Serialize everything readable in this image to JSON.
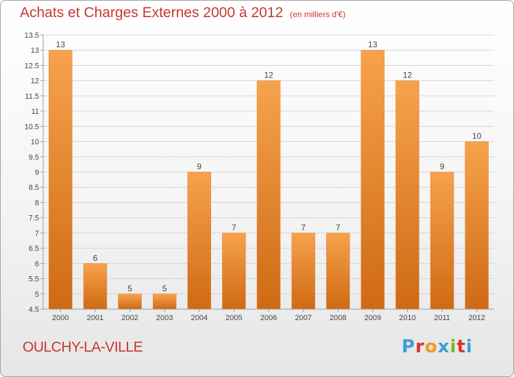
{
  "header": {
    "title": "Achats et Charges Externes 2000 à 2012",
    "unit": "(en milliers d'€)"
  },
  "footer": {
    "commune": "OULCHY-LA-VILLE",
    "logo_letters": [
      "P",
      "r",
      "o",
      "x",
      "i",
      "t",
      "i"
    ],
    "logo_colors": [
      "#3a9fd8",
      "#e0312b",
      "#f39a1e",
      "#3a9fd8",
      "#71b62e",
      "#e0312b",
      "#3a9fd8"
    ]
  },
  "colors": {
    "bar_light": "#f7a24c",
    "bar_dark": "#cf6a14",
    "grid": "#d4d4d4",
    "axis": "#999999"
  },
  "chart_data": {
    "type": "bar",
    "title": "Achats et Charges Externes 2000 à 2012",
    "xlabel": "",
    "ylabel": "",
    "categories": [
      "2000",
      "2001",
      "2002",
      "2003",
      "2004",
      "2005",
      "2006",
      "2007",
      "2008",
      "2009",
      "2010",
      "2011",
      "2012"
    ],
    "values": [
      13,
      6,
      5,
      5,
      9,
      7,
      12,
      7,
      7,
      13,
      12,
      9,
      10
    ],
    "data_labels": [
      "13",
      "6",
      "5",
      "5",
      "9",
      "7",
      "12",
      "7",
      "7",
      "13",
      "12",
      "9",
      "10"
    ],
    "ylim": [
      4.5,
      13.5
    ],
    "y_ticks": [
      4.5,
      5,
      5.5,
      6,
      6.5,
      7,
      7.5,
      8,
      8.5,
      9,
      9.5,
      10,
      10.5,
      11,
      11.5,
      12,
      12.5,
      13,
      13.5
    ],
    "y_tick_labels": [
      "4.5",
      "5",
      "5.5",
      "6",
      "6.5",
      "7",
      "7.5",
      "8",
      "8.5",
      "9",
      "9.5",
      "10",
      "10.5",
      "11",
      "11.5",
      "12",
      "12.5",
      "13",
      "13.5"
    ],
    "grid": true,
    "legend": "none"
  }
}
